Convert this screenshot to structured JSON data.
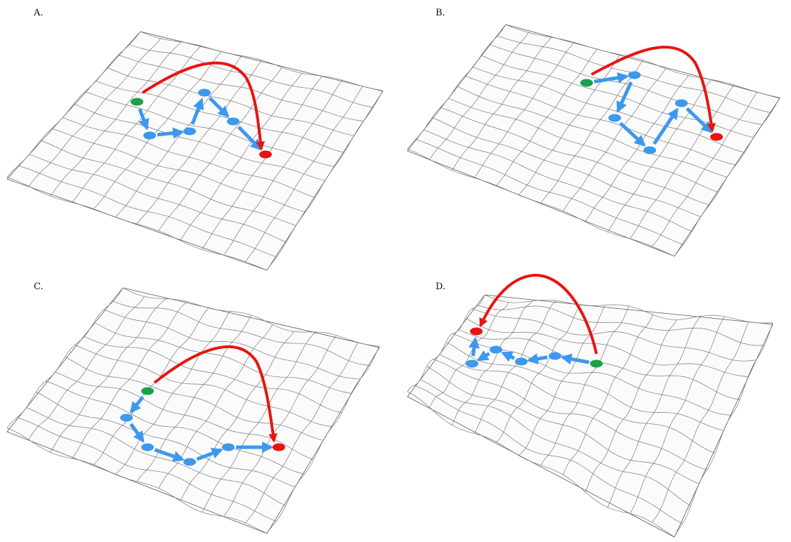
{
  "panels": [
    {
      "label": "A."
    },
    {
      "label": "B."
    },
    {
      "label": "C."
    },
    {
      "label": "D."
    }
  ]
}
